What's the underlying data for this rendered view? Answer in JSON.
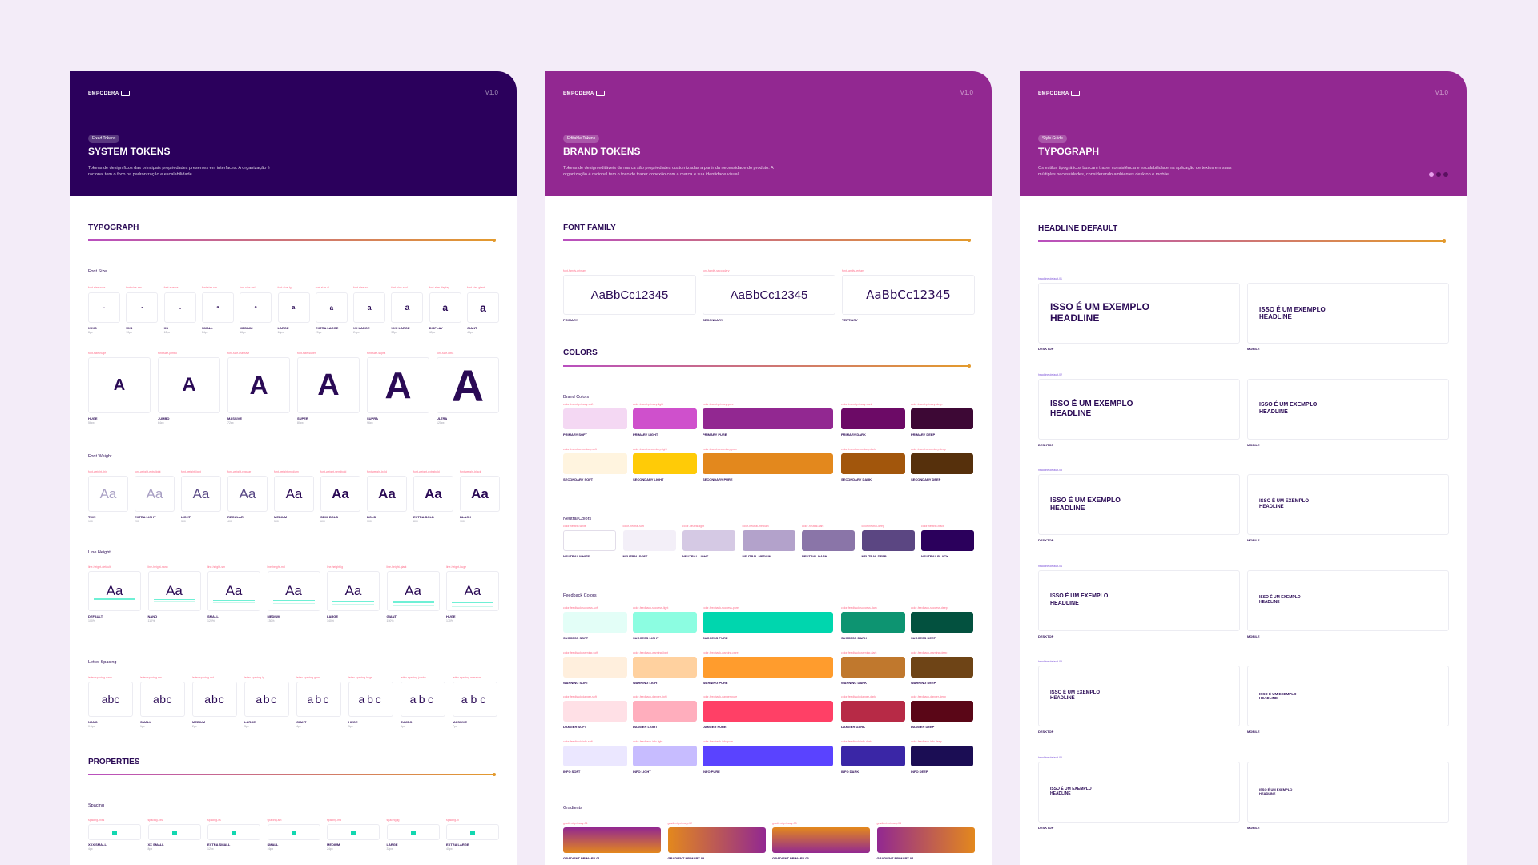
{
  "brand_name": "EMPODERA",
  "colors": {
    "page_bg": "#f3ecf8",
    "hero1": "#2b005c",
    "hero2": "#922891",
    "hero3": "#922891",
    "accent": "#b94fbf"
  },
  "panels": [
    {
      "version": "V1.0",
      "tag": "Fixed Tokens",
      "title": "SYSTEM TOKENS",
      "desc": "Tokens de design fixos das principais propriedades presentes em interfaces. A organização é racional tem o foco na padronização e escalabilidade."
    },
    {
      "version": "V1.0",
      "tag": "Editable Tokens",
      "title": "BRAND TOKENS",
      "desc": "Tokens de design editáveis da marca são propriedades customizadas a partir da necessidade do produto. A organização é racional tem o foco de trazer conexão com a marca e sua identidade visual."
    },
    {
      "version": "V1.0",
      "tag": "Style Guide",
      "title": "TYPOGRAPH",
      "desc": "Os estilos tipográficos buscam trazer consistência e escalabilidade na aplicação de textos em suas múltiplas necessidades, considerando ambientes desktop e mobile."
    }
  ],
  "system": {
    "typograph_title": "TYPOGRAPH",
    "font_size_label": "Font Size",
    "font_sizes_small": [
      {
        "token": "font-size-xxxs",
        "label": "XXXS",
        "value": "8px"
      },
      {
        "token": "font-size-xxs",
        "label": "XXS",
        "value": "10px"
      },
      {
        "token": "font-size-xs",
        "label": "XS",
        "value": "12px"
      },
      {
        "token": "font-size-sm",
        "label": "SMALL",
        "value": "14px"
      },
      {
        "token": "font-size-md",
        "label": "MEDIUM",
        "value": "16px"
      },
      {
        "token": "font-size-lg",
        "label": "LARGE",
        "value": "18px"
      },
      {
        "token": "font-size-xl",
        "label": "EXTRA LARGE",
        "value": "20px"
      },
      {
        "token": "font-size-xxl",
        "label": "XX LARGE",
        "value": "24px"
      },
      {
        "token": "font-size-xxxl",
        "label": "XXX LARGE",
        "value": "32px"
      },
      {
        "token": "font-size-display",
        "label": "DISPLAY",
        "value": "40px"
      },
      {
        "token": "font-size-giant",
        "label": "GIANT",
        "value": "48px"
      }
    ],
    "font_sizes_large": [
      {
        "token": "font-size-huge",
        "label": "HUGE",
        "value": "56px"
      },
      {
        "token": "font-size-jumbo",
        "label": "JUMBO",
        "value": "64px"
      },
      {
        "token": "font-size-massive",
        "label": "MASSIVE",
        "value": "72px"
      },
      {
        "token": "font-size-super",
        "label": "SUPER",
        "value": "80px"
      },
      {
        "token": "font-size-supra",
        "label": "SUPRA",
        "value": "96px"
      },
      {
        "token": "font-size-ultra",
        "label": "ULTRA",
        "value": "120px"
      }
    ],
    "font_weight_label": "Font Weight",
    "font_weights": [
      {
        "token": "font-weight-thin",
        "label": "THIN",
        "value": "100",
        "w": "100"
      },
      {
        "token": "font-weight-extralight",
        "label": "EXTRA LIGHT",
        "value": "200",
        "w": "200"
      },
      {
        "token": "font-weight-light",
        "label": "LIGHT",
        "value": "300",
        "w": "300"
      },
      {
        "token": "font-weight-regular",
        "label": "REGULAR",
        "value": "400",
        "w": "400"
      },
      {
        "token": "font-weight-medium",
        "label": "MEDIUM",
        "value": "500",
        "w": "500"
      },
      {
        "token": "font-weight-semibold",
        "label": "SEMI BOLD",
        "value": "600",
        "w": "600"
      },
      {
        "token": "font-weight-bold",
        "label": "BOLD",
        "value": "700",
        "w": "700"
      },
      {
        "token": "font-weight-extrabold",
        "label": "EXTRA BOLD",
        "value": "800",
        "w": "800"
      },
      {
        "token": "font-weight-black",
        "label": "BLACK",
        "value": "900",
        "w": "900"
      }
    ],
    "line_height_label": "Line Height",
    "line_heights": [
      {
        "token": "line-height-default",
        "label": "DEFAULT",
        "value": "100%"
      },
      {
        "token": "line-height-nano",
        "label": "NANO",
        "value": "110%"
      },
      {
        "token": "line-height-sm",
        "label": "SMALL",
        "value": "120%"
      },
      {
        "token": "line-height-md",
        "label": "MEDIUM",
        "value": "130%"
      },
      {
        "token": "line-height-lg",
        "label": "LARGE",
        "value": "140%"
      },
      {
        "token": "line-height-giant",
        "label": "GIANT",
        "value": "150%"
      },
      {
        "token": "line-height-huge",
        "label": "HUGE",
        "value": "170%"
      }
    ],
    "letter_spacing_label": "Letter Spacing",
    "letter_spacings": [
      {
        "token": "letter-spacing-nano",
        "label": "NANO",
        "value": "0.5px"
      },
      {
        "token": "letter-spacing-sm",
        "label": "SMALL",
        "value": "1px"
      },
      {
        "token": "letter-spacing-md",
        "label": "MEDIUM",
        "value": "2px"
      },
      {
        "token": "letter-spacing-lg",
        "label": "LARGE",
        "value": "3px"
      },
      {
        "token": "letter-spacing-giant",
        "label": "GIANT",
        "value": "4px"
      },
      {
        "token": "letter-spacing-huge",
        "label": "HUGE",
        "value": "5px"
      },
      {
        "token": "letter-spacing-jumbo",
        "label": "JUMBO",
        "value": "6px"
      },
      {
        "token": "letter-spacing-massive",
        "label": "MASSIVE",
        "value": "7px"
      }
    ],
    "sample_upper": "A",
    "sample_lower": "a",
    "sample_aa": "Aa",
    "sample_abc": "abc",
    "properties_title": "PROPERTIES",
    "spacing_label": "Spacing",
    "spacings": [
      {
        "token": "spacing-xxxs",
        "label": "XXX SMALL",
        "value": "4px"
      },
      {
        "token": "spacing-xxs",
        "label": "XX SMALL",
        "value": "8px"
      },
      {
        "token": "spacing-xs",
        "label": "EXTRA SMALL",
        "value": "12px"
      },
      {
        "token": "spacing-sm",
        "label": "SMALL",
        "value": "16px"
      },
      {
        "token": "spacing-md",
        "label": "MEDIUM",
        "value": "24px"
      },
      {
        "token": "spacing-lg",
        "label": "LARGE",
        "value": "32px"
      },
      {
        "token": "spacing-xl",
        "label": "EXTRA LARGE",
        "value": "40px"
      }
    ]
  },
  "brandtok": {
    "font_family_title": "FONT FAMILY",
    "families": [
      {
        "token": "font-family-primary",
        "sample": "AaBbCc12345",
        "label": "PRIMARY"
      },
      {
        "token": "font-family-secondary",
        "sample": "AaBbCc12345",
        "label": "SECONDARY"
      },
      {
        "token": "font-family-tertiary",
        "sample": "AaBbCc12345",
        "label": "TERTIARY"
      }
    ],
    "colors_title": "COLORS",
    "brand_colors_label": "Brand Colors",
    "neutral_colors_label": "Neutral Colors",
    "feedback_colors_label": "Feedback Colors",
    "gradients_label": "Gradients",
    "primary_row": [
      {
        "token": "color-brand-primary-soft",
        "label": "PRIMARY SOFT",
        "hex": "#f4d8f3"
      },
      {
        "token": "color-brand-primary-light",
        "label": "PRIMARY LIGHT",
        "hex": "#cf50cc"
      },
      {
        "token": "color-brand-primary-pure",
        "label": "PRIMARY PURE",
        "hex": "#922891"
      },
      {
        "token": "color-brand-primary-dark",
        "label": "PRIMARY DARK",
        "hex": "#6c0a66"
      },
      {
        "token": "color-brand-primary-deep",
        "label": "PRIMARY DEEP",
        "hex": "#3d0835"
      }
    ],
    "secondary_row": [
      {
        "token": "color-brand-secondary-soft",
        "label": "SECONDARY SOFT",
        "hex": "#fff4df"
      },
      {
        "token": "color-brand-secondary-light",
        "label": "SECONDARY LIGHT",
        "hex": "#ffcb07"
      },
      {
        "token": "color-brand-secondary-pure",
        "label": "SECONDARY PURE",
        "hex": "#e3881d"
      },
      {
        "token": "color-brand-secondary-dark",
        "label": "SECONDARY DARK",
        "hex": "#a2560c"
      },
      {
        "token": "color-brand-secondary-deep",
        "label": "SECONDARY DEEP",
        "hex": "#56300c"
      }
    ],
    "neutral_row": [
      {
        "token": "color-neutral-white",
        "label": "NEUTRAL WHITE",
        "hex": "#ffffff"
      },
      {
        "token": "color-neutral-soft",
        "label": "NEUTRAL SOFT",
        "hex": "#f3eff8"
      },
      {
        "token": "color-neutral-light",
        "label": "NEUTRAL LIGHT",
        "hex": "#d5c9e4"
      },
      {
        "token": "color-neutral-medium",
        "label": "NEUTRAL MEDIUM",
        "hex": "#b3a2cb"
      },
      {
        "token": "color-neutral-dark",
        "label": "NEUTRAL DARK",
        "hex": "#8a75a8"
      },
      {
        "token": "color-neutral-deep",
        "label": "NEUTRAL DEEP",
        "hex": "#5b4682"
      },
      {
        "token": "color-neutral-black",
        "label": "NEUTRAL BLACK",
        "hex": "#2b005c"
      }
    ],
    "success_row": [
      {
        "token": "color-feedback-success-soft",
        "label": "SUCCESS SOFT",
        "hex": "#e3fef7"
      },
      {
        "token": "color-feedback-success-light",
        "label": "SUCCESS LIGHT",
        "hex": "#8cfde1"
      },
      {
        "token": "color-feedback-success-pure",
        "label": "SUCCESS PURE",
        "hex": "#00d6ae"
      },
      {
        "token": "color-feedback-success-dark",
        "label": "SUCCESS DARK",
        "hex": "#0d9471"
      },
      {
        "token": "color-feedback-success-deep",
        "label": "SUCCESS DEEP",
        "hex": "#03513f"
      }
    ],
    "warning_row": [
      {
        "token": "color-feedback-warning-soft",
        "label": "WARNING SOFT",
        "hex": "#ffefdd"
      },
      {
        "token": "color-feedback-warning-light",
        "label": "WARNING LIGHT",
        "hex": "#ffd19f"
      },
      {
        "token": "color-feedback-warning-pure",
        "label": "WARNING PURE",
        "hex": "#ff9c2d"
      },
      {
        "token": "color-feedback-warning-dark",
        "label": "WARNING DARK",
        "hex": "#c0782d"
      },
      {
        "token": "color-feedback-warning-deep",
        "label": "WARNING DEEP",
        "hex": "#6e4416"
      }
    ],
    "danger_row": [
      {
        "token": "color-feedback-danger-soft",
        "label": "DANGER SOFT",
        "hex": "#ffe0e6"
      },
      {
        "token": "color-feedback-danger-light",
        "label": "DANGER LIGHT",
        "hex": "#ffaebd"
      },
      {
        "token": "color-feedback-danger-pure",
        "label": "DANGER PURE",
        "hex": "#ff4066"
      },
      {
        "token": "color-feedback-danger-dark",
        "label": "DANGER DARK",
        "hex": "#b72a46"
      },
      {
        "token": "color-feedback-danger-deep",
        "label": "DANGER DEEP",
        "hex": "#5a0617"
      }
    ],
    "info_row": [
      {
        "token": "color-feedback-info-soft",
        "label": "INFO SOFT",
        "hex": "#ebe7ff"
      },
      {
        "token": "color-feedback-info-light",
        "label": "INFO LIGHT",
        "hex": "#c7bcff"
      },
      {
        "token": "color-feedback-info-pure",
        "label": "INFO PURE",
        "hex": "#5a43ff"
      },
      {
        "token": "color-feedback-info-dark",
        "label": "INFO DARK",
        "hex": "#3a26a6"
      },
      {
        "token": "color-feedback-info-deep",
        "label": "INFO DEEP",
        "hex": "#1b0d54"
      }
    ],
    "gradients": [
      {
        "token": "gradient-primary-01",
        "label": "GRADIENT PRIMARY 01",
        "from": "#922891",
        "to": "#e3881d",
        "dir": "180deg"
      },
      {
        "token": "gradient-primary-02",
        "label": "GRADIENT PRIMARY 02",
        "from": "#e3881d",
        "to": "#922891",
        "dir": "90deg"
      },
      {
        "token": "gradient-primary-03",
        "label": "GRADIENT PRIMARY 03",
        "from": "#922891",
        "to": "#e3881d",
        "dir": "0deg"
      },
      {
        "token": "gradient-primary-04",
        "label": "GRADIENT PRIMARY 04",
        "from": "#922891",
        "to": "#e3881d",
        "dir": "90deg"
      }
    ]
  },
  "headline": {
    "title": "HEADLINE DEFAULT",
    "items": [
      {
        "token": "headline-default-01",
        "desktop_text": "ISSO É UM EXEMPLO HEADLINE",
        "mobile_text": "ISSO É UM EXEMPLO HEADLINE",
        "desktop_label": "DESKTOP",
        "mobile_label": "MOBILE",
        "ds": 12,
        "ms": 8
      },
      {
        "token": "headline-default-02",
        "desktop_text": "ISSO É UM EXEMPLO HEADLINE",
        "mobile_text": "ISSO É UM EXEMPLO HEADLINE",
        "desktop_label": "DESKTOP",
        "mobile_label": "MOBILE",
        "ds": 10,
        "ms": 7
      },
      {
        "token": "headline-default-03",
        "desktop_text": "ISSO É UM EXEMPLO HEADLINE",
        "mobile_text": "ISSO É UM EXEMPLO HEADLINE",
        "desktop_label": "DESKTOP",
        "mobile_label": "MOBILE",
        "ds": 8.5,
        "ms": 6
      },
      {
        "token": "headline-default-04",
        "desktop_text": "ISSO É UM EXEMPLO HEADLINE",
        "mobile_text": "ISSO É UM EXEMPLO HEADLINE",
        "desktop_label": "DESKTOP",
        "mobile_label": "MOBILE",
        "ds": 7,
        "ms": 5
      },
      {
        "token": "headline-default-05",
        "desktop_text": "ISSO É UM EXEMPLO HEADLINE",
        "mobile_text": "ISSO É UM EXEMPLO HEADLINE",
        "desktop_label": "DESKTOP",
        "mobile_label": "MOBILE",
        "ds": 6,
        "ms": 4.5
      },
      {
        "token": "headline-default-06",
        "desktop_text": "ISSO É UM EXEMPLO HEADLINE",
        "mobile_text": "ISSO É UM EXEMPLO HEADLINE",
        "desktop_label": "DESKTOP",
        "mobile_label": "MOBILE",
        "ds": 5,
        "ms": 4
      }
    ]
  }
}
